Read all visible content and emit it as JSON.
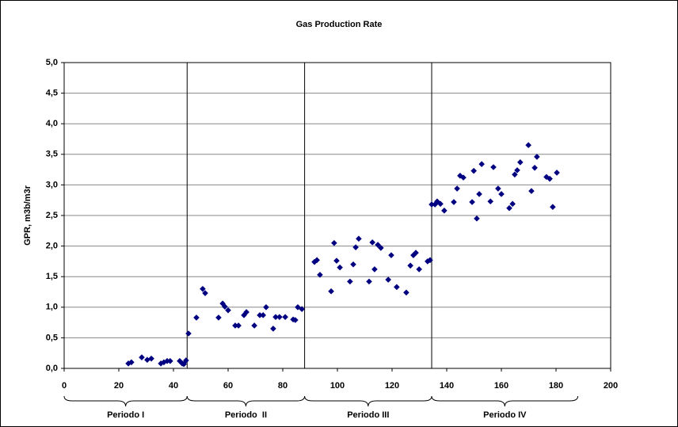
{
  "chart_data": {
    "type": "scatter",
    "title": "Gas Production Rate",
    "y_label": "GPR, m3b/m3r",
    "x": [
      23.5,
      24.6,
      28.4,
      30.4,
      31.9,
      35.4,
      36.5,
      37.7,
      38.8,
      42.3,
      43.2,
      43.8,
      44.6,
      45.5,
      48.4,
      50.7,
      51.6,
      56.5,
      58.0,
      58.8,
      60.0,
      62.6,
      63.8,
      65.8,
      66.7,
      69.6,
      71.6,
      72.8,
      73.9,
      76.5,
      77.4,
      78.8,
      80.9,
      83.8,
      84.6,
      85.5,
      87.0,
      91.6,
      92.5,
      93.6,
      97.7,
      98.8,
      99.7,
      100.9,
      104.6,
      105.8,
      106.7,
      107.8,
      111.6,
      112.8,
      113.6,
      114.8,
      115.9,
      118.6,
      119.7,
      121.7,
      125.2,
      126.7,
      127.8,
      128.7,
      129.9,
      133.0,
      133.9,
      134.5,
      135.7,
      136.5,
      137.7,
      139.1,
      142.6,
      143.8,
      144.9,
      146.1,
      149.3,
      149.9,
      151.0,
      151.9,
      152.8,
      156.0,
      157.1,
      158.8,
      160.0,
      162.9,
      164.1,
      164.9,
      165.8,
      166.9,
      169.9,
      171.0,
      172.2,
      173.0,
      176.5,
      177.7,
      178.8,
      180.3
    ],
    "values": [
      0.08,
      0.1,
      0.18,
      0.14,
      0.16,
      0.08,
      0.1,
      0.12,
      0.12,
      0.12,
      0.08,
      0.07,
      0.13,
      0.57,
      0.83,
      1.3,
      1.23,
      0.83,
      1.06,
      1.01,
      0.95,
      0.7,
      0.7,
      0.87,
      0.92,
      0.7,
      0.87,
      0.87,
      1.0,
      0.65,
      0.84,
      0.84,
      0.84,
      0.8,
      0.79,
      1.0,
      0.97,
      1.74,
      1.77,
      1.53,
      1.26,
      2.05,
      1.76,
      1.65,
      1.42,
      1.7,
      1.98,
      2.12,
      1.42,
      2.06,
      1.62,
      2.02,
      1.97,
      1.45,
      1.85,
      1.33,
      1.24,
      1.68,
      1.85,
      1.89,
      1.62,
      1.75,
      1.77,
      2.68,
      2.68,
      2.73,
      2.69,
      2.58,
      2.72,
      2.94,
      3.15,
      3.12,
      2.72,
      3.23,
      2.45,
      2.85,
      3.34,
      2.73,
      3.29,
      2.94,
      2.85,
      2.62,
      2.69,
      3.17,
      3.24,
      3.37,
      3.65,
      2.9,
      3.28,
      3.46,
      3.13,
      3.1,
      2.64,
      3.2
    ],
    "color": "#000080",
    "xlim": [
      0,
      200
    ],
    "xticks": [
      0,
      20,
      40,
      60,
      80,
      100,
      120,
      140,
      160,
      180,
      200
    ],
    "ylim": [
      0,
      5
    ],
    "yticks": [
      {
        "value": 0,
        "label": "0,0"
      },
      {
        "value": 0.5,
        "label": "0,5"
      },
      {
        "value": 1,
        "label": "1,0"
      },
      {
        "value": 1.5,
        "label": "1,5"
      },
      {
        "value": 2,
        "label": "2,0"
      },
      {
        "value": 2.5,
        "label": "2,5"
      },
      {
        "value": 3,
        "label": "3,0"
      },
      {
        "value": 3.5,
        "label": "3,5"
      },
      {
        "value": 4,
        "label": "4,0"
      },
      {
        "value": 4.5,
        "label": "4,5"
      },
      {
        "value": 5,
        "label": "5,0"
      }
    ],
    "grid": true,
    "periods": [
      {
        "label": "Periodo I",
        "range": [
          0,
          45
        ]
      },
      {
        "label": "Periodo  II",
        "range": [
          45,
          88
        ]
      },
      {
        "label": "Periodo III",
        "range": [
          88,
          134.5
        ]
      },
      {
        "label": "Periodo IV",
        "range": [
          134.5,
          188
        ]
      }
    ],
    "dividers": [
      45,
      88,
      134.5
    ]
  }
}
